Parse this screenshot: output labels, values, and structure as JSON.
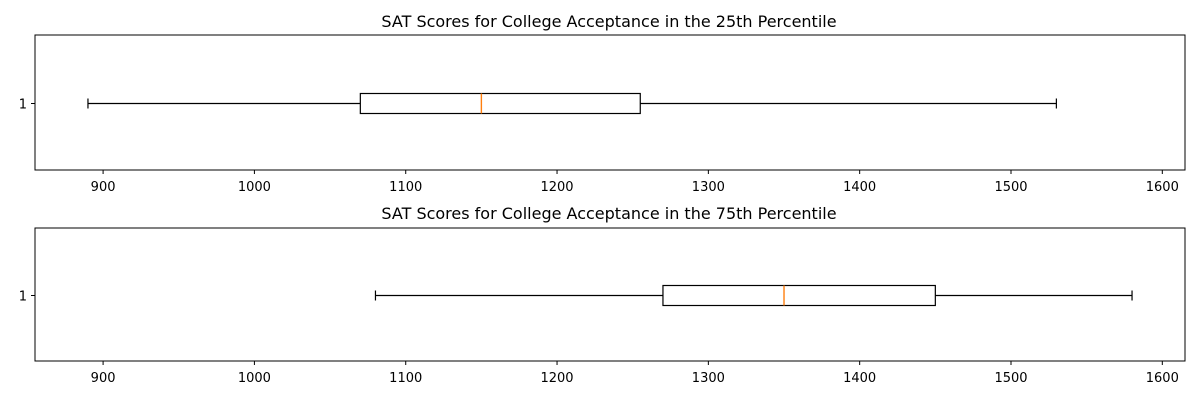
{
  "chart_data": [
    {
      "type": "boxplot",
      "orientation": "horizontal",
      "title": "SAT Scores for College Acceptance in the 25th Percentile",
      "xlabel": "",
      "ylabel": "",
      "xlim": [
        855,
        1615
      ],
      "xticks": [
        900,
        1000,
        1100,
        1200,
        1300,
        1400,
        1500,
        1600
      ],
      "y_tick_labels": [
        "1"
      ],
      "grid": false,
      "series": [
        {
          "category": "1",
          "min": 890,
          "q1": 1070,
          "median": 1150,
          "q3": 1255,
          "max": 1530
        }
      ],
      "colors": {
        "box": "#000000",
        "whisker": "#000000",
        "median": "#ff7f0e"
      }
    },
    {
      "type": "boxplot",
      "orientation": "horizontal",
      "title": "SAT Scores for College Acceptance in the 75th Percentile",
      "xlabel": "",
      "ylabel": "",
      "xlim": [
        855,
        1615
      ],
      "xticks": [
        900,
        1000,
        1100,
        1200,
        1300,
        1400,
        1500,
        1600
      ],
      "y_tick_labels": [
        "1"
      ],
      "grid": false,
      "series": [
        {
          "category": "1",
          "min": 1080,
          "q1": 1270,
          "median": 1350,
          "q3": 1450,
          "max": 1580
        }
      ],
      "colors": {
        "box": "#000000",
        "whisker": "#000000",
        "median": "#ff7f0e"
      }
    }
  ]
}
